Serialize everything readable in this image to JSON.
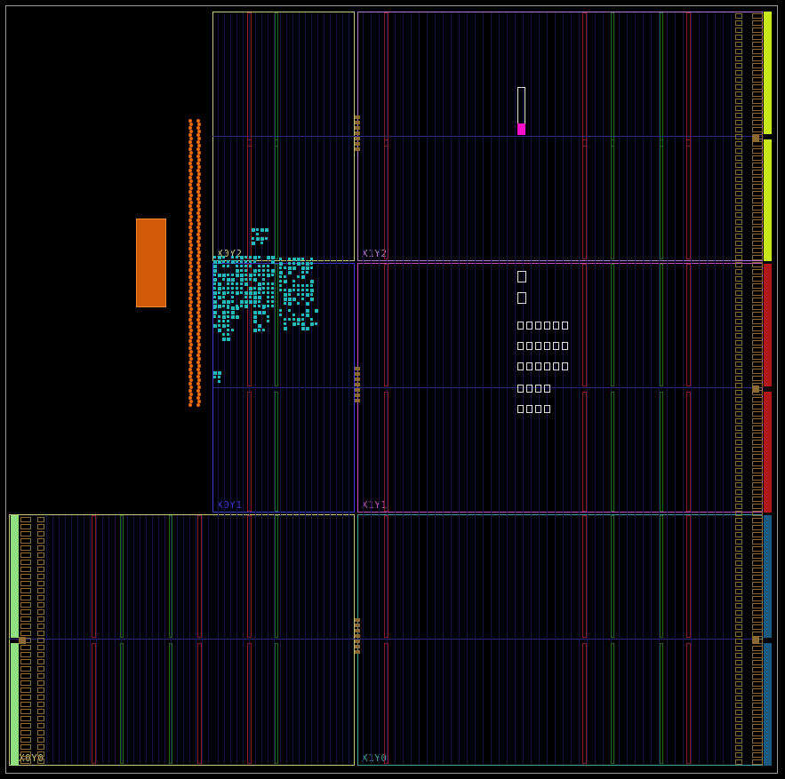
{
  "device_view": {
    "regions": [
      {
        "label": "X0Y2",
        "color": "#c8c880"
      },
      {
        "label": "X1Y2",
        "color": "#b07ad0"
      },
      {
        "label": "X0Y1",
        "color": "#3a3ad8"
      },
      {
        "label": "X1Y1",
        "color": "#c050c0"
      },
      {
        "label": "X0Y0",
        "color": "#c8c880"
      },
      {
        "label": "X1Y0",
        "color": "#40a0a0"
      }
    ],
    "colors": {
      "background": "#000000",
      "device_outline": "#9a9a9a",
      "clb_column_red": "#8a1a30",
      "clb_column_green": "#1f6a1f",
      "placed_cells": "#20b8b8",
      "io_bank_orange": "#f06a10",
      "block_orange": "#d05a08",
      "highlight_magenta": "#ff10c8",
      "gt_yellow": "#c8e81a",
      "gt_red": "#c01818",
      "gt_teal": "#1a5a80",
      "gt_green": "#90e080",
      "io_tile_brown": "#8a6a30"
    }
  }
}
